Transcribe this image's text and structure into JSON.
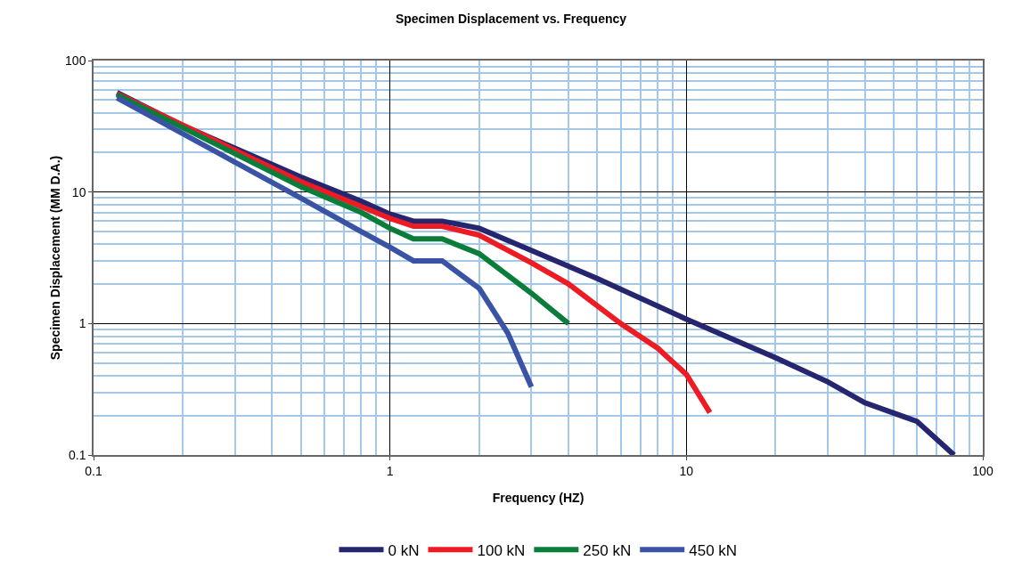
{
  "chart_data": {
    "type": "line",
    "title": "Specimen Displacement vs. Frequency",
    "xlabel": "Frequency (HZ)",
    "ylabel": "Specimen Displacement (MM D.A.)",
    "log": "xy",
    "grid": true,
    "legend": "bottom",
    "marker": "none",
    "line_style": "solid",
    "xlim": [
      0.1,
      100
    ],
    "xticks": [
      0.1,
      {
        "value": 0.2,
        "label": null
      },
      {
        "value": 0.3,
        "label": null
      },
      {
        "value": 0.4,
        "label": null
      },
      {
        "value": 0.5,
        "label": null
      },
      {
        "value": 0.6,
        "label": null
      },
      {
        "value": 0.7,
        "label": null
      },
      {
        "value": 0.8,
        "label": null
      },
      {
        "value": 0.9,
        "label": null
      },
      1,
      {
        "value": 2,
        "label": null
      },
      {
        "value": 3,
        "label": null
      },
      {
        "value": 4,
        "label": null
      },
      {
        "value": 5,
        "label": null
      },
      {
        "value": 6,
        "label": null
      },
      {
        "value": 7,
        "label": null
      },
      {
        "value": 8,
        "label": null
      },
      {
        "value": 9,
        "label": null
      },
      10,
      {
        "value": 20,
        "label": null
      },
      {
        "value": 30,
        "label": null
      },
      {
        "value": 40,
        "label": null
      },
      {
        "value": 50,
        "label": null
      },
      {
        "value": 60,
        "label": null
      },
      {
        "value": 70,
        "label": null
      },
      {
        "value": 80,
        "label": null
      },
      {
        "value": 90,
        "label": null
      },
      100
    ],
    "ylim": [
      0.1,
      100
    ],
    "yticks": [
      0.1,
      {
        "value": 0.2,
        "label": null
      },
      {
        "value": 0.3,
        "label": null
      },
      {
        "value": 0.4,
        "label": null
      },
      {
        "value": 0.5,
        "label": null
      },
      {
        "value": 0.6,
        "label": null
      },
      {
        "value": 0.7,
        "label": null
      },
      {
        "value": 0.8,
        "label": null
      },
      {
        "value": 0.9,
        "label": null
      },
      1,
      {
        "value": 2,
        "label": null
      },
      {
        "value": 3,
        "label": null
      },
      {
        "value": 4,
        "label": null
      },
      {
        "value": 5,
        "label": null
      },
      {
        "value": 6,
        "label": null
      },
      {
        "value": 7,
        "label": null
      },
      {
        "value": 8,
        "label": null
      },
      {
        "value": 9,
        "label": null
      },
      10,
      {
        "value": 20,
        "label": null
      },
      {
        "value": 30,
        "label": null
      },
      {
        "value": 40,
        "label": null
      },
      {
        "value": 50,
        "label": null
      },
      {
        "value": 60,
        "label": null
      },
      {
        "value": 70,
        "label": null
      },
      {
        "value": 80,
        "label": null
      },
      {
        "value": 90,
        "label": null
      },
      100
    ],
    "series": [
      {
        "name": "0 kN",
        "color": "#262670",
        "x": [
          0.12,
          0.2,
          0.5,
          0.8,
          1,
          1.2,
          1.5,
          2,
          3,
          5,
          10,
          20,
          30,
          40,
          60,
          80
        ],
        "values": [
          57,
          32,
          13,
          8.5,
          6.8,
          6.0,
          6.0,
          5.3,
          3.6,
          2.2,
          1.08,
          0.55,
          0.36,
          0.25,
          0.18,
          0.1
        ]
      },
      {
        "name": "100 kN",
        "color": "#ed1c24",
        "x": [
          0.12,
          0.5,
          1,
          1.2,
          1.5,
          2,
          3,
          4,
          6,
          8,
          10,
          12
        ],
        "values": [
          56,
          12,
          6.3,
          5.5,
          5.5,
          4.7,
          2.9,
          2.0,
          1.0,
          0.65,
          0.41,
          0.21
        ]
      },
      {
        "name": "250 kN",
        "color": "#0a7d3a",
        "x": [
          0.12,
          0.5,
          0.8,
          1,
          1.2,
          1.5,
          2,
          3,
          4
        ],
        "values": [
          55,
          11,
          7,
          5.3,
          4.4,
          4.4,
          3.4,
          1.7,
          1.0
        ]
      },
      {
        "name": "450 kN",
        "color": "#3a53a4",
        "x": [
          0.12,
          0.5,
          0.8,
          1,
          1.2,
          1.5,
          2,
          2.5,
          3
        ],
        "values": [
          52,
          9,
          5,
          3.8,
          3.0,
          3.0,
          1.85,
          0.84,
          0.33
        ]
      }
    ]
  }
}
